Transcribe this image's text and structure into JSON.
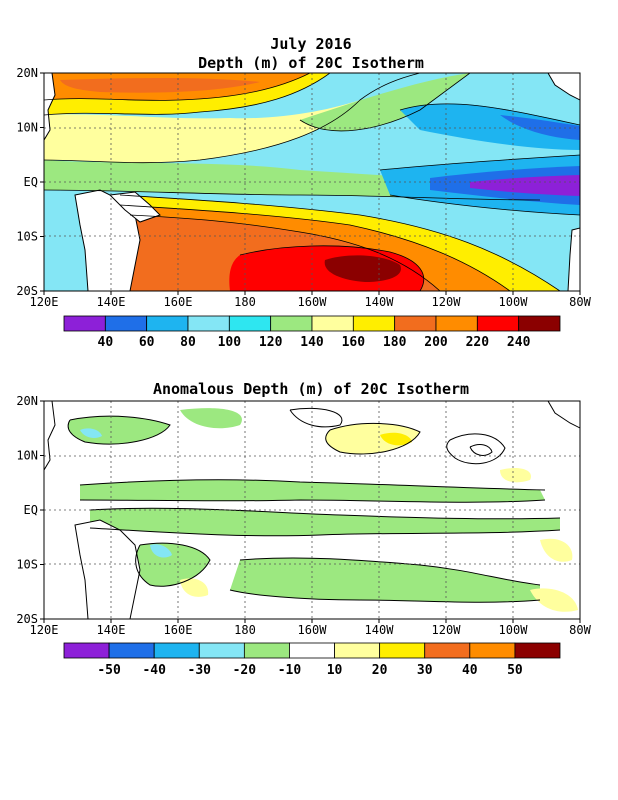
{
  "chart_data": [
    {
      "type": "heatmap",
      "title_line1": "July 2016",
      "title_line2": "Depth (m) of 20C Isotherm",
      "x_ticks": [
        "120E",
        "140E",
        "160E",
        "180",
        "160W",
        "140W",
        "120W",
        "100W",
        "80W"
      ],
      "y_ticks": [
        "20N",
        "10N",
        "EQ",
        "10S",
        "20S"
      ],
      "colorbar": {
        "labels": [
          "40",
          "60",
          "80",
          "100",
          "120",
          "140",
          "160",
          "180",
          "200",
          "220",
          "240"
        ],
        "colors": [
          "#8d20d8",
          "#1f6fe8",
          "#1eb4f0",
          "#84e6f5",
          "#2ee6f0",
          "#9ce880",
          "#ffff9e",
          "#ffee00",
          "#f26d1e",
          "#ff8c00",
          "#ff0000",
          "#8b0000"
        ]
      }
    },
    {
      "type": "heatmap",
      "title": "Anomalous Depth (m) of 20C Isotherm",
      "x_ticks": [
        "120E",
        "140E",
        "160E",
        "180",
        "160W",
        "140W",
        "120W",
        "100W",
        "80W"
      ],
      "y_ticks": [
        "20N",
        "10N",
        "EQ",
        "10S",
        "20S"
      ],
      "colorbar": {
        "labels": [
          "-50",
          "-40",
          "-30",
          "-20",
          "-10",
          "10",
          "20",
          "30",
          "40",
          "50"
        ],
        "colors": [
          "#8d20d8",
          "#1f6fe8",
          "#1eb4f0",
          "#84e6f5",
          "#9ce880",
          "#ffffff",
          "#ffff9e",
          "#ffee00",
          "#f26d1e",
          "#ff8c00",
          "#8b0000"
        ]
      }
    }
  ]
}
